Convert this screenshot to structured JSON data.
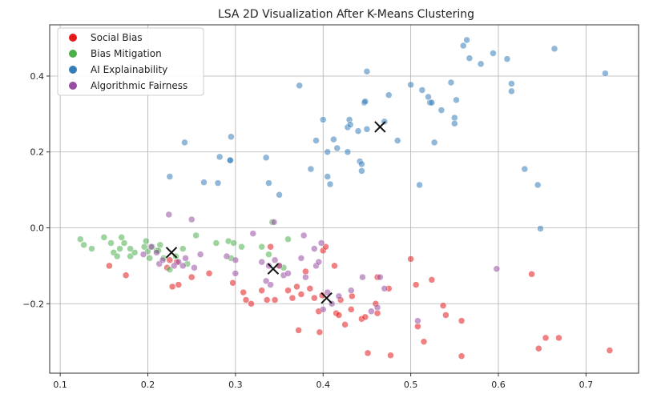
{
  "chart_data": {
    "type": "scatter",
    "title": "LSA 2D Visualization After K-Means Clustering",
    "xlabel": "",
    "ylabel": "",
    "xlim": [
      0.088,
      0.76
    ],
    "ylim": [
      -0.383,
      0.535
    ],
    "xticks": [
      0.1,
      0.2,
      0.3,
      0.4,
      0.5,
      0.6,
      0.7
    ],
    "xtick_labels": [
      "0.1",
      "0.2",
      "0.3",
      "0.4",
      "0.5",
      "0.6",
      "0.7"
    ],
    "yticks": [
      -0.2,
      0.0,
      0.2,
      0.4
    ],
    "ytick_labels": [
      "−0.2",
      "0.0",
      "0.2",
      "0.4"
    ],
    "grid": true,
    "legend_position": "top-left",
    "legend": [
      {
        "label": "Social Bias",
        "color": "#e41a1c"
      },
      {
        "label": "Bias Mitigation",
        "color": "#4daf4a"
      },
      {
        "label": "AI Explainability",
        "color": "#377eb8"
      },
      {
        "label": "Algorithmic Fairness",
        "color": "#984ea3"
      }
    ],
    "series": [
      {
        "name": "Social Bias",
        "color": "#e41a1c",
        "points": [
          [
            0.156,
            -0.1
          ],
          [
            0.175,
            -0.125
          ],
          [
            0.222,
            -0.105
          ],
          [
            0.228,
            -0.155
          ],
          [
            0.235,
            -0.15
          ],
          [
            0.233,
            -0.09
          ],
          [
            0.25,
            -0.13
          ],
          [
            0.27,
            -0.12
          ],
          [
            0.297,
            -0.145
          ],
          [
            0.309,
            -0.17
          ],
          [
            0.312,
            -0.19
          ],
          [
            0.318,
            -0.2
          ],
          [
            0.33,
            -0.165
          ],
          [
            0.336,
            -0.19
          ],
          [
            0.345,
            -0.19
          ],
          [
            0.34,
            -0.05
          ],
          [
            0.35,
            -0.1
          ],
          [
            0.36,
            -0.165
          ],
          [
            0.365,
            -0.185
          ],
          [
            0.37,
            -0.155
          ],
          [
            0.375,
            -0.175
          ],
          [
            0.38,
            -0.115
          ],
          [
            0.385,
            -0.16
          ],
          [
            0.39,
            -0.185
          ],
          [
            0.395,
            -0.22
          ],
          [
            0.399,
            -0.178
          ],
          [
            0.372,
            -0.27
          ],
          [
            0.396,
            -0.275
          ],
          [
            0.4,
            -0.06
          ],
          [
            0.403,
            -0.05
          ],
          [
            0.413,
            -0.1
          ],
          [
            0.415,
            -0.225
          ],
          [
            0.418,
            -0.23
          ],
          [
            0.42,
            -0.19
          ],
          [
            0.425,
            -0.255
          ],
          [
            0.432,
            -0.215
          ],
          [
            0.433,
            -0.18
          ],
          [
            0.444,
            -0.24
          ],
          [
            0.448,
            -0.235
          ],
          [
            0.451,
            -0.33
          ],
          [
            0.46,
            -0.2
          ],
          [
            0.462,
            -0.225
          ],
          [
            0.462,
            -0.13
          ],
          [
            0.475,
            -0.16
          ],
          [
            0.477,
            -0.336
          ],
          [
            0.5,
            -0.082
          ],
          [
            0.506,
            -0.15
          ],
          [
            0.508,
            -0.26
          ],
          [
            0.515,
            -0.3
          ],
          [
            0.524,
            -0.137
          ],
          [
            0.537,
            -0.205
          ],
          [
            0.54,
            -0.23
          ],
          [
            0.558,
            -0.245
          ],
          [
            0.558,
            -0.338
          ],
          [
            0.638,
            -0.122
          ],
          [
            0.646,
            -0.318
          ],
          [
            0.654,
            -0.29
          ],
          [
            0.669,
            -0.29
          ],
          [
            0.727,
            -0.323
          ],
          [
            0.225,
            -0.085
          ]
        ]
      },
      {
        "name": "Bias Mitigation",
        "color": "#4daf4a",
        "points": [
          [
            0.123,
            -0.03
          ],
          [
            0.127,
            -0.045
          ],
          [
            0.136,
            -0.055
          ],
          [
            0.15,
            -0.025
          ],
          [
            0.158,
            -0.04
          ],
          [
            0.161,
            -0.065
          ],
          [
            0.165,
            -0.075
          ],
          [
            0.168,
            -0.055
          ],
          [
            0.17,
            -0.025
          ],
          [
            0.173,
            -0.04
          ],
          [
            0.18,
            -0.075
          ],
          [
            0.185,
            -0.065
          ],
          [
            0.196,
            -0.05
          ],
          [
            0.198,
            -0.035
          ],
          [
            0.2,
            -0.062
          ],
          [
            0.202,
            -0.08
          ],
          [
            0.205,
            -0.05
          ],
          [
            0.21,
            -0.06
          ],
          [
            0.214,
            -0.045
          ],
          [
            0.218,
            -0.08
          ],
          [
            0.225,
            -0.11
          ],
          [
            0.232,
            -0.075
          ],
          [
            0.24,
            -0.055
          ],
          [
            0.245,
            -0.095
          ],
          [
            0.255,
            -0.02
          ],
          [
            0.278,
            -0.04
          ],
          [
            0.292,
            -0.035
          ],
          [
            0.295,
            -0.08
          ],
          [
            0.298,
            -0.04
          ],
          [
            0.307,
            -0.05
          ],
          [
            0.33,
            -0.05
          ],
          [
            0.338,
            -0.07
          ],
          [
            0.342,
            0.015
          ],
          [
            0.355,
            -0.105
          ],
          [
            0.36,
            -0.03
          ],
          [
            0.212,
            -0.06
          ],
          [
            0.18,
            -0.055
          ]
        ]
      },
      {
        "name": "AI Explainability",
        "color": "#377eb8",
        "points": [
          [
            0.225,
            0.135
          ],
          [
            0.242,
            0.225
          ],
          [
            0.264,
            0.12
          ],
          [
            0.28,
            0.118
          ],
          [
            0.282,
            0.187
          ],
          [
            0.294,
            0.178
          ],
          [
            0.295,
            0.24
          ],
          [
            0.294,
            0.178
          ],
          [
            0.335,
            0.185
          ],
          [
            0.338,
            0.118
          ],
          [
            0.35,
            0.087
          ],
          [
            0.373,
            0.375
          ],
          [
            0.386,
            0.155
          ],
          [
            0.392,
            0.23
          ],
          [
            0.4,
            0.285
          ],
          [
            0.405,
            0.2
          ],
          [
            0.405,
            0.135
          ],
          [
            0.408,
            0.115
          ],
          [
            0.412,
            0.233
          ],
          [
            0.416,
            0.21
          ],
          [
            0.428,
            0.2
          ],
          [
            0.428,
            0.265
          ],
          [
            0.43,
            0.285
          ],
          [
            0.431,
            0.272
          ],
          [
            0.44,
            0.255
          ],
          [
            0.442,
            0.175
          ],
          [
            0.444,
            0.168
          ],
          [
            0.444,
            0.15
          ],
          [
            0.447,
            0.33
          ],
          [
            0.448,
            0.333
          ],
          [
            0.45,
            0.412
          ],
          [
            0.45,
            0.26
          ],
          [
            0.47,
            0.28
          ],
          [
            0.475,
            0.35
          ],
          [
            0.485,
            0.23
          ],
          [
            0.5,
            0.377
          ],
          [
            0.51,
            0.113
          ],
          [
            0.513,
            0.363
          ],
          [
            0.52,
            0.345
          ],
          [
            0.522,
            0.33
          ],
          [
            0.524,
            0.33
          ],
          [
            0.527,
            0.225
          ],
          [
            0.535,
            0.31
          ],
          [
            0.546,
            0.383
          ],
          [
            0.55,
            0.29
          ],
          [
            0.55,
            0.275
          ],
          [
            0.552,
            0.337
          ],
          [
            0.56,
            0.48
          ],
          [
            0.564,
            0.495
          ],
          [
            0.567,
            0.447
          ],
          [
            0.58,
            0.432
          ],
          [
            0.594,
            0.46
          ],
          [
            0.61,
            0.445
          ],
          [
            0.615,
            0.38
          ],
          [
            0.615,
            0.36
          ],
          [
            0.63,
            0.155
          ],
          [
            0.645,
            0.113
          ],
          [
            0.648,
            -0.002
          ],
          [
            0.664,
            0.472
          ],
          [
            0.722,
            0.407
          ]
        ]
      },
      {
        "name": "Algorithmic Fairness",
        "color": "#984ea3",
        "points": [
          [
            0.195,
            -0.07
          ],
          [
            0.21,
            -0.065
          ],
          [
            0.213,
            -0.095
          ],
          [
            0.217,
            -0.085
          ],
          [
            0.224,
            0.035
          ],
          [
            0.23,
            -0.1
          ],
          [
            0.235,
            -0.09
          ],
          [
            0.24,
            -0.1
          ],
          [
            0.243,
            -0.08
          ],
          [
            0.25,
            0.022
          ],
          [
            0.253,
            -0.105
          ],
          [
            0.26,
            -0.07
          ],
          [
            0.29,
            -0.075
          ],
          [
            0.3,
            -0.12
          ],
          [
            0.3,
            -0.085
          ],
          [
            0.32,
            -0.015
          ],
          [
            0.33,
            -0.09
          ],
          [
            0.335,
            -0.14
          ],
          [
            0.338,
            -0.1
          ],
          [
            0.34,
            -0.15
          ],
          [
            0.344,
            0.015
          ],
          [
            0.345,
            -0.085
          ],
          [
            0.35,
            -0.1
          ],
          [
            0.355,
            -0.125
          ],
          [
            0.36,
            -0.12
          ],
          [
            0.375,
            -0.08
          ],
          [
            0.378,
            -0.02
          ],
          [
            0.38,
            -0.13
          ],
          [
            0.39,
            -0.055
          ],
          [
            0.392,
            -0.1
          ],
          [
            0.395,
            -0.09
          ],
          [
            0.398,
            -0.04
          ],
          [
            0.4,
            -0.215
          ],
          [
            0.405,
            -0.17
          ],
          [
            0.41,
            -0.2
          ],
          [
            0.418,
            -0.18
          ],
          [
            0.432,
            -0.165
          ],
          [
            0.445,
            -0.13
          ],
          [
            0.455,
            -0.22
          ],
          [
            0.462,
            -0.21
          ],
          [
            0.465,
            -0.13
          ],
          [
            0.47,
            -0.16
          ],
          [
            0.508,
            -0.245
          ],
          [
            0.598,
            -0.108
          ],
          [
            0.204,
            -0.05
          ]
        ]
      }
    ],
    "centroids": [
      [
        0.227,
        -0.065
      ],
      [
        0.343,
        -0.108
      ],
      [
        0.404,
        -0.185
      ],
      [
        0.465,
        0.266
      ]
    ]
  }
}
